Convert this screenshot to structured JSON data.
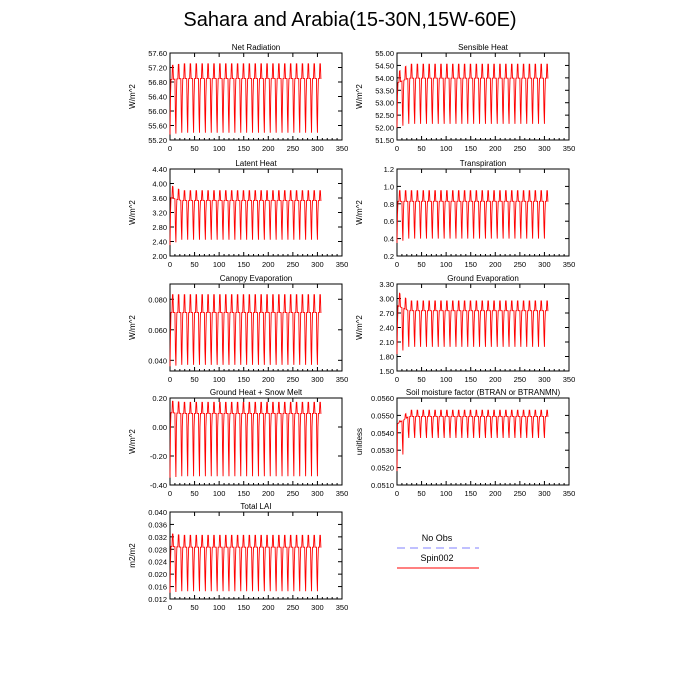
{
  "title": "Sahara and Arabia(15-30N,15W-60E)",
  "colors": {
    "spin": "#ff0000",
    "obs": "#8080ff",
    "axis": "#000000"
  },
  "legend": {
    "obs_label": "No Obs",
    "spin_label": "Spin002"
  },
  "chart_data": [
    {
      "type": "line",
      "title": "Net Radiation",
      "ylabel": "W/m^2",
      "xlim": [
        0,
        350
      ],
      "x_ticks": [
        "0",
        "50",
        "100",
        "150",
        "200",
        "250",
        "300",
        "350"
      ],
      "ylim": [
        55.2,
        57.6
      ],
      "y_ticks": [
        "55.20",
        "55.60",
        "56.00",
        "56.40",
        "56.80",
        "57.20",
        "57.60"
      ],
      "series": [
        {
          "name": "Spin002",
          "months": 308,
          "min": 55.4,
          "max": 57.3,
          "mid": 56.4,
          "max_start": 57.25,
          "min_start": 55.35
        }
      ]
    },
    {
      "type": "line",
      "title": "Sensible Heat",
      "ylabel": "W/m^2",
      "xlim": [
        0,
        350
      ],
      "x_ticks": [
        "0",
        "50",
        "100",
        "150",
        "200",
        "250",
        "300",
        "350"
      ],
      "ylim": [
        51.5,
        55.0
      ],
      "y_ticks": [
        "51.50",
        "52.00",
        "52.50",
        "53.00",
        "53.50",
        "54.00",
        "54.50",
        "55.00"
      ],
      "series": [
        {
          "name": "Spin002",
          "months": 308,
          "min": 52.15,
          "max": 54.55,
          "mid": 53.3,
          "max_start": 54.2,
          "min_start": 52.0
        }
      ]
    },
    {
      "type": "line",
      "title": "Latent Heat",
      "ylabel": "W/m^2",
      "xlim": [
        0,
        350
      ],
      "x_ticks": [
        "0",
        "50",
        "100",
        "150",
        "200",
        "250",
        "300",
        "350"
      ],
      "ylim": [
        2.0,
        4.4
      ],
      "y_ticks": [
        "2.00",
        "2.40",
        "2.80",
        "3.20",
        "3.60",
        "4.00",
        "4.40"
      ],
      "series": [
        {
          "name": "Spin002",
          "months": 308,
          "min": 2.45,
          "max": 3.8,
          "mid": 3.2,
          "max_start": 3.95,
          "min_start": 2.3
        }
      ]
    },
    {
      "type": "line",
      "title": "Transpiration",
      "ylabel": "W/m^2",
      "xlim": [
        0,
        350
      ],
      "x_ticks": [
        "0",
        "50",
        "100",
        "150",
        "200",
        "250",
        "300",
        "350"
      ],
      "ylim": [
        0.2,
        1.2
      ],
      "y_ticks": [
        "0.2",
        "0.4",
        "0.6",
        "0.8",
        "1.0",
        "1.2"
      ],
      "series": [
        {
          "name": "Spin002",
          "months": 308,
          "min": 0.4,
          "max": 0.95,
          "mid": 0.68,
          "max_start": 0.95,
          "min_start": 0.35
        }
      ]
    },
    {
      "type": "line",
      "title": "Canopy Evaporation",
      "ylabel": "W/m^2",
      "xlim": [
        0,
        350
      ],
      "x_ticks": [
        "0",
        "50",
        "100",
        "150",
        "200",
        "250",
        "300",
        "350"
      ],
      "ylim": [
        0.033,
        0.09
      ],
      "y_ticks": [
        "0.040",
        "0.060",
        "0.080"
      ],
      "y_tick_values": [
        0.04,
        0.06,
        0.08
      ],
      "series": [
        {
          "name": "Spin002",
          "months": 308,
          "min": 0.037,
          "max": 0.083,
          "mid": 0.057,
          "max_start": 0.083,
          "min_start": 0.036
        }
      ]
    },
    {
      "type": "line",
      "title": "Ground Evaporation",
      "ylabel": "W/m^2",
      "xlim": [
        0,
        350
      ],
      "x_ticks": [
        "0",
        "50",
        "100",
        "150",
        "200",
        "250",
        "300",
        "350"
      ],
      "ylim": [
        1.5,
        3.3
      ],
      "y_ticks": [
        "1.50",
        "1.80",
        "2.10",
        "2.40",
        "2.70",
        "3.00",
        "3.30"
      ],
      "series": [
        {
          "name": "Spin002",
          "months": 308,
          "min": 2.0,
          "max": 2.95,
          "mid": 2.5,
          "max_start": 3.15,
          "min_start": 1.85
        }
      ]
    },
    {
      "type": "line",
      "title": "Ground Heat + Snow Melt",
      "ylabel": "W/m^2",
      "xlim": [
        0,
        350
      ],
      "x_ticks": [
        "0",
        "50",
        "100",
        "150",
        "200",
        "250",
        "300",
        "350"
      ],
      "ylim": [
        -0.4,
        0.2
      ],
      "y_ticks": [
        "-0.40",
        "-0.20",
        "0.00",
        "0.20"
      ],
      "y_tick_values": [
        -0.4,
        -0.2,
        0.0,
        0.2
      ],
      "series": [
        {
          "name": "Spin002",
          "months": 308,
          "min": -0.34,
          "max": 0.17,
          "mid": 0.0,
          "max_start": 0.18,
          "min_start": -0.35
        }
      ]
    },
    {
      "type": "line",
      "title": "Soil moisture factor (BTRAN or BTRANMN)",
      "ylabel": "unitless",
      "xlim": [
        0,
        350
      ],
      "x_ticks": [
        "0",
        "50",
        "100",
        "150",
        "200",
        "250",
        "300",
        "350"
      ],
      "ylim": [
        0.051,
        0.056
      ],
      "y_ticks": [
        "0.0510",
        "0.0520",
        "0.0530",
        "0.0540",
        "0.0550",
        "0.0560"
      ],
      "series": [
        {
          "name": "Spin002",
          "months": 308,
          "min": 0.0537,
          "max": 0.0553,
          "mid": 0.0545,
          "max_start": 0.0545,
          "min_start": 0.0518
        }
      ]
    },
    {
      "type": "line",
      "title": "Total LAI",
      "ylabel": "m2/m2",
      "xlim": [
        0,
        350
      ],
      "x_ticks": [
        "0",
        "50",
        "100",
        "150",
        "200",
        "250",
        "300",
        "350"
      ],
      "ylim": [
        0.012,
        0.04
      ],
      "y_ticks": [
        "0.012",
        "0.016",
        "0.020",
        "0.024",
        "0.028",
        "0.032",
        "0.036",
        "0.040"
      ],
      "series": [
        {
          "name": "Spin002",
          "months": 308,
          "min": 0.0145,
          "max": 0.0325,
          "mid": 0.024,
          "max_start": 0.033,
          "min_start": 0.014
        }
      ]
    }
  ]
}
